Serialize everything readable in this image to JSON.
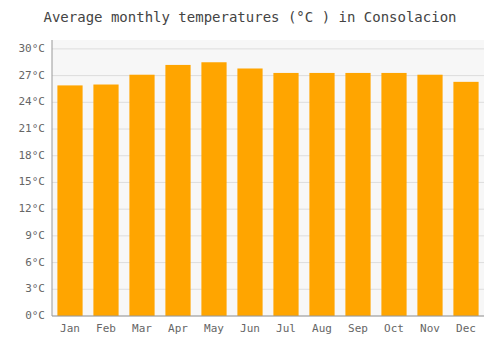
{
  "chart_data": {
    "type": "bar",
    "title": "Average monthly temperatures (°C ) in Consolacion",
    "categories": [
      "Jan",
      "Feb",
      "Mar",
      "Apr",
      "May",
      "Jun",
      "Jul",
      "Aug",
      "Sep",
      "Oct",
      "Nov",
      "Dec"
    ],
    "values": [
      25.9,
      26.0,
      27.1,
      28.2,
      28.5,
      27.8,
      27.3,
      27.3,
      27.3,
      27.3,
      27.1,
      26.3
    ],
    "color": "#FFA500",
    "ylim": [
      0,
      31
    ],
    "yticks": [
      {
        "value": 0,
        "label": "0°C"
      },
      {
        "value": 3,
        "label": "3°C"
      },
      {
        "value": 6,
        "label": "6°C"
      },
      {
        "value": 9,
        "label": "9°C"
      },
      {
        "value": 12,
        "label": "12°C"
      },
      {
        "value": 15,
        "label": "15°C"
      },
      {
        "value": 18,
        "label": "18°C"
      },
      {
        "value": 21,
        "label": "21°C"
      },
      {
        "value": 24,
        "label": "24°C"
      },
      {
        "value": 27,
        "label": "27°C"
      },
      {
        "value": 30,
        "label": "30°C"
      }
    ],
    "grid": true
  }
}
